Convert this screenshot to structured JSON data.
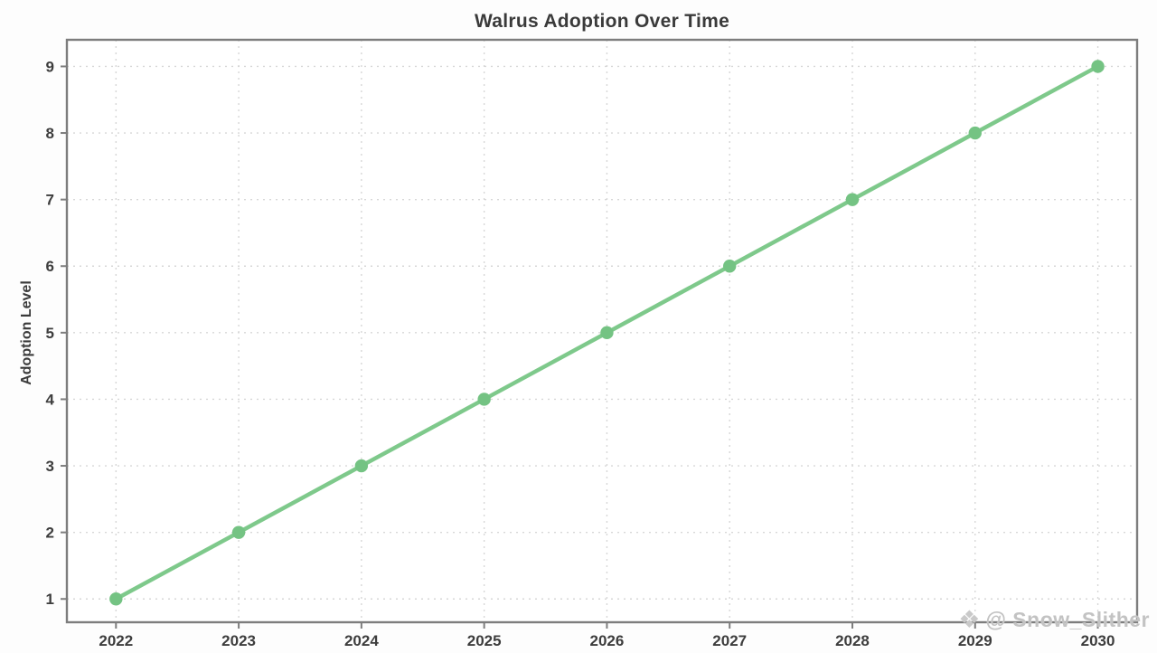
{
  "title": "Walrus Adoption Over Time",
  "watermark": {
    "icon": "snowflake-icon",
    "glyph": "❖",
    "text": "@ Snow_Slither"
  },
  "colors": {
    "line": "#7ec98b",
    "marker": "#74c383",
    "grid": "#d7d7d7",
    "frame": "#7d7d7d",
    "tick_text": "#3d3d3d",
    "plot_background": "#ffffff"
  },
  "chart_data": {
    "type": "line",
    "title": "Walrus Adoption Over Time",
    "xlabel": "",
    "ylabel": "Adoption Level",
    "x": [
      2022,
      2023,
      2024,
      2025,
      2026,
      2027,
      2028,
      2029,
      2030
    ],
    "values": [
      1,
      2,
      3,
      4,
      5,
      6,
      7,
      8,
      9
    ],
    "xticks": [
      2022,
      2023,
      2024,
      2025,
      2026,
      2027,
      2028,
      2029,
      2030
    ],
    "yticks": [
      1,
      2,
      3,
      4,
      5,
      6,
      7,
      8,
      9
    ],
    "xlim": [
      2021.6,
      2030.32
    ],
    "ylim": [
      0.65,
      9.4
    ],
    "grid": true,
    "grid_style": "dashed",
    "legend_position": "none",
    "marker": "circle"
  }
}
